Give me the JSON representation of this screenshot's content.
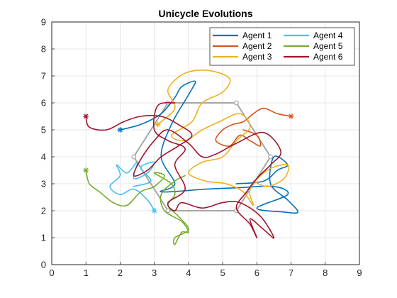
{
  "chart_data": {
    "type": "line",
    "title": "Unicycle Evolutions",
    "xlabel": "",
    "ylabel": "",
    "xlim": [
      0,
      9
    ],
    "ylim": [
      0,
      9
    ],
    "xticks": [
      "0",
      "1",
      "2",
      "3",
      "4",
      "5",
      "6",
      "7",
      "8",
      "9"
    ],
    "yticks": [
      "0",
      "1",
      "2",
      "3",
      "4",
      "5",
      "6",
      "7",
      "8",
      "9"
    ],
    "grid": true,
    "legend_position": "top-right",
    "legend_columns": 2,
    "colors": {
      "axis": "#262626",
      "grid": "#dfdfdf",
      "hexagon": "#a6a6a6"
    },
    "formation_hexagon": [
      [
        3.4,
        2.0
      ],
      [
        5.4,
        2.0
      ],
      [
        6.4,
        4.0
      ],
      [
        5.4,
        6.0
      ],
      [
        3.4,
        6.0
      ],
      [
        2.4,
        4.0
      ]
    ],
    "series": [
      {
        "name": "Agent 1",
        "color": "#0072BD",
        "start": [
          2.0,
          5.0
        ],
        "path": [
          [
            2.0,
            5.0
          ],
          [
            2.6,
            5.2
          ],
          [
            3.2,
            5.6
          ],
          [
            3.6,
            6.2
          ],
          [
            3.8,
            6.6
          ],
          [
            4.2,
            6.8
          ],
          [
            4.0,
            6.3
          ],
          [
            3.5,
            5.2
          ],
          [
            3.2,
            4.0
          ],
          [
            3.6,
            3.0
          ],
          [
            3.2,
            2.7
          ],
          [
            4.5,
            2.8
          ],
          [
            5.4,
            2.85
          ],
          [
            6.5,
            2.9
          ],
          [
            6.9,
            2.6
          ],
          [
            6.0,
            2.1
          ],
          [
            6.8,
            1.95
          ],
          [
            7.2,
            1.95
          ],
          [
            6.9,
            2.4
          ],
          [
            6.4,
            3.0
          ],
          [
            6.5,
            4.0
          ],
          [
            6.9,
            3.7
          ],
          [
            6.6,
            3.5
          ],
          [
            6.2,
            3.1
          ],
          [
            5.4,
            3.0
          ]
        ]
      },
      {
        "name": "Agent 2",
        "color": "#D95319",
        "start": [
          7.0,
          5.5
        ],
        "path": [
          [
            7.0,
            5.5
          ],
          [
            6.6,
            5.6
          ],
          [
            6.2,
            5.8
          ],
          [
            5.9,
            5.6
          ],
          [
            5.6,
            5.3
          ],
          [
            5.3,
            5.2
          ],
          [
            5.0,
            5.0
          ],
          [
            4.8,
            4.6
          ],
          [
            5.2,
            4.4
          ],
          [
            5.5,
            4.8
          ],
          [
            5.8,
            4.6
          ],
          [
            6.1,
            4.4
          ],
          [
            6.0,
            4.8
          ],
          [
            5.6,
            5.0
          ]
        ]
      },
      {
        "name": "Agent 3",
        "color": "#EDB120",
        "start": [
          3.1,
          5.2
        ],
        "path": [
          [
            3.1,
            5.2
          ],
          [
            3.6,
            5.8
          ],
          [
            3.4,
            6.5
          ],
          [
            3.9,
            7.1
          ],
          [
            4.6,
            7.2
          ],
          [
            5.2,
            6.9
          ],
          [
            5.0,
            6.4
          ],
          [
            4.4,
            6.0
          ],
          [
            4.1,
            5.3
          ],
          [
            3.5,
            4.8
          ],
          [
            3.9,
            4.6
          ],
          [
            4.4,
            5.0
          ],
          [
            4.9,
            5.3
          ],
          [
            5.5,
            5.6
          ],
          [
            5.8,
            5.1
          ],
          [
            5.4,
            4.6
          ],
          [
            5.0,
            4.0
          ],
          [
            4.4,
            3.8
          ],
          [
            4.0,
            3.4
          ],
          [
            4.5,
            3.1
          ],
          [
            5.1,
            3.0
          ],
          [
            5.6,
            2.7
          ],
          [
            5.9,
            2.2
          ],
          [
            5.8,
            2.8
          ],
          [
            6.3,
            3.5
          ],
          [
            6.9,
            3.7
          ],
          [
            6.8,
            3.2
          ],
          [
            6.3,
            2.9
          ],
          [
            5.9,
            3.1
          ]
        ]
      },
      {
        "name": "Agent 4",
        "color": "#4DBEEE",
        "start": [
          3.0,
          2.0
        ],
        "path": [
          [
            3.0,
            2.0
          ],
          [
            2.8,
            2.4
          ],
          [
            2.4,
            2.8
          ],
          [
            2.0,
            2.6
          ],
          [
            1.7,
            2.9
          ],
          [
            2.0,
            3.3
          ],
          [
            1.9,
            3.7
          ],
          [
            2.2,
            3.4
          ],
          [
            2.5,
            3.8
          ],
          [
            2.4,
            3.2
          ],
          [
            2.8,
            3.4
          ],
          [
            3.0,
            3.8
          ],
          [
            2.6,
            3.6
          ],
          [
            2.9,
            3.1
          ],
          [
            2.4,
            2.9
          ]
        ]
      },
      {
        "name": "Agent 5",
        "color": "#77AC30",
        "start": [
          1.0,
          3.5
        ],
        "path": [
          [
            1.0,
            3.5
          ],
          [
            1.1,
            3.0
          ],
          [
            1.4,
            2.7
          ],
          [
            1.8,
            2.3
          ],
          [
            2.2,
            2.2
          ],
          [
            2.6,
            2.7
          ],
          [
            3.0,
            2.9
          ],
          [
            3.3,
            3.3
          ],
          [
            3.0,
            3.4
          ],
          [
            3.5,
            3.0
          ],
          [
            3.6,
            2.6
          ],
          [
            3.4,
            2.2
          ],
          [
            3.7,
            1.8
          ],
          [
            4.0,
            1.3
          ],
          [
            3.6,
            1.0
          ],
          [
            3.6,
            0.75
          ],
          [
            3.8,
            1.2
          ],
          [
            4.0,
            1.2
          ],
          [
            3.8,
            1.6
          ],
          [
            3.3,
            2.0
          ],
          [
            3.2,
            2.6
          ],
          [
            3.6,
            3.1
          ],
          [
            3.9,
            3.3
          ]
        ]
      },
      {
        "name": "Agent 6",
        "color": "#A2142F",
        "start": [
          1.0,
          5.5
        ],
        "path": [
          [
            1.0,
            5.5
          ],
          [
            1.1,
            5.1
          ],
          [
            1.6,
            5.0
          ],
          [
            2.1,
            5.3
          ],
          [
            2.6,
            5.5
          ],
          [
            3.2,
            5.5
          ],
          [
            3.7,
            5.2
          ],
          [
            4.1,
            4.8
          ],
          [
            3.7,
            4.4
          ],
          [
            3.2,
            4.0
          ],
          [
            2.8,
            3.5
          ],
          [
            2.4,
            3.3
          ],
          [
            2.6,
            3.9
          ],
          [
            3.0,
            4.6
          ],
          [
            3.4,
            5.0
          ],
          [
            4.0,
            4.5
          ],
          [
            4.4,
            4.0
          ],
          [
            4.8,
            4.1
          ],
          [
            5.4,
            4.5
          ],
          [
            6.2,
            4.9
          ],
          [
            6.7,
            4.2
          ],
          [
            6.4,
            3.7
          ],
          [
            6.0,
            3.2
          ],
          [
            5.7,
            2.7
          ],
          [
            5.4,
            2.1
          ],
          [
            5.8,
            1.5
          ],
          [
            6.0,
            1.0
          ],
          [
            5.8,
            1.7
          ],
          [
            6.2,
            1.3
          ],
          [
            6.5,
            1.0
          ],
          [
            6.1,
            1.8
          ],
          [
            5.5,
            2.3
          ],
          [
            5.0,
            2.3
          ],
          [
            4.4,
            2.1
          ],
          [
            3.8,
            2.3
          ],
          [
            3.6,
            2.0
          ],
          [
            3.4,
            2.3
          ],
          [
            3.9,
            2.8
          ],
          [
            3.6,
            3.7
          ],
          [
            3.9,
            4.3
          ],
          [
            3.4,
            4.6
          ],
          [
            3.0,
            5.0
          ],
          [
            3.1,
            5.9
          ],
          [
            3.6,
            6.0
          ]
        ]
      }
    ]
  }
}
